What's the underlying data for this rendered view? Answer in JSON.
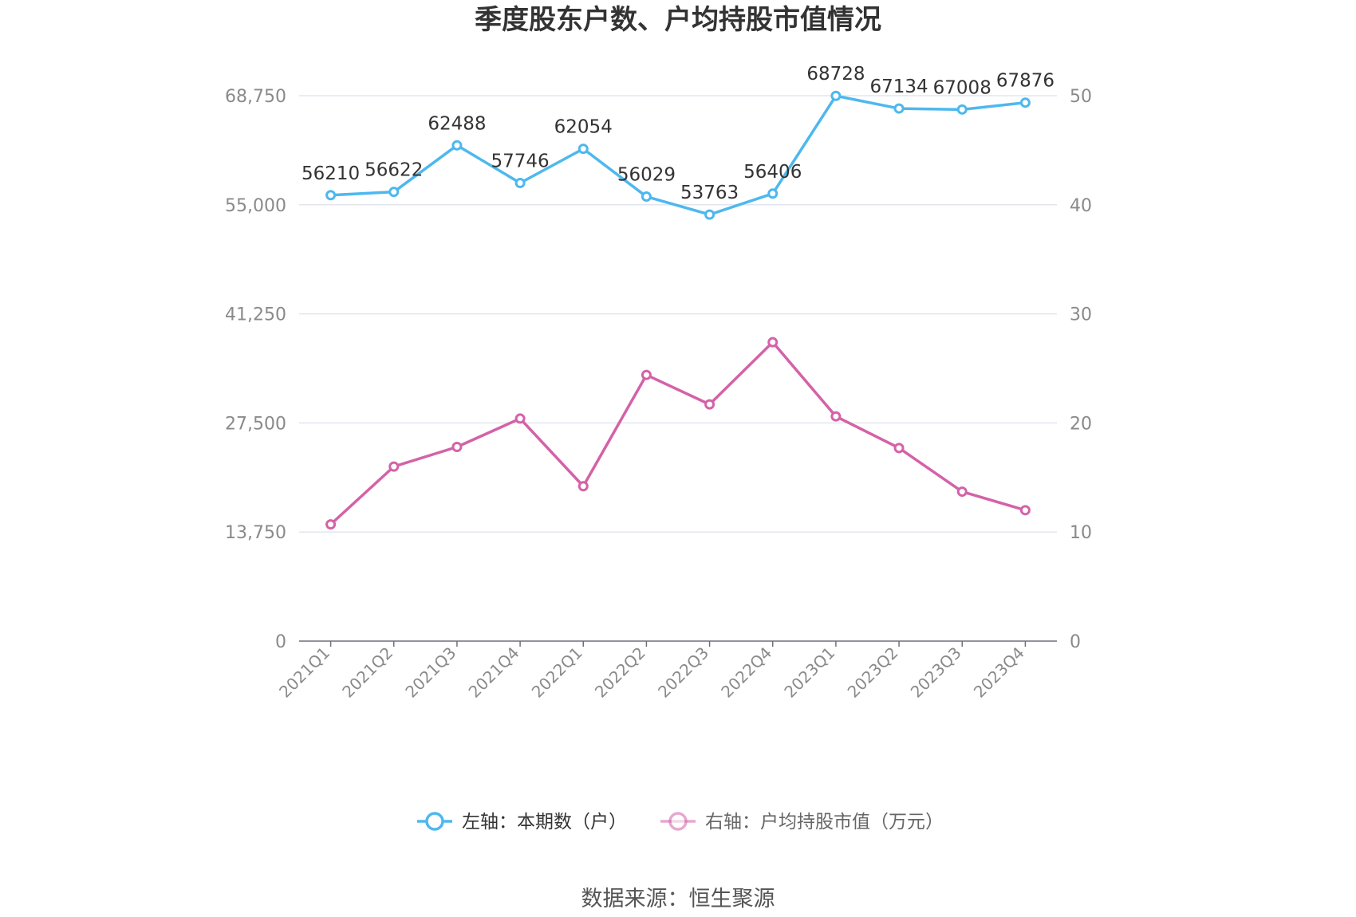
{
  "chart_data": {
    "type": "line",
    "title": "季度股东户数、户均持股市值情况",
    "categories": [
      "2021Q1",
      "2021Q2",
      "2021Q3",
      "2021Q4",
      "2022Q1",
      "2022Q2",
      "2022Q3",
      "2022Q4",
      "2023Q1",
      "2023Q2",
      "2023Q3",
      "2023Q4"
    ],
    "left_axis": {
      "ticks": [
        "0",
        "13,750",
        "27,500",
        "41,250",
        "55,000",
        "68,750"
      ],
      "ylim": [
        0,
        68750
      ]
    },
    "right_axis": {
      "ticks": [
        "0",
        "10",
        "20",
        "30",
        "40",
        "50"
      ],
      "ylim": [
        0,
        50
      ]
    },
    "series": [
      {
        "name": "左轴：本期数（户）",
        "axis": "left",
        "color": "#4db8ee",
        "values": [
          56210,
          56622,
          62488,
          57746,
          62054,
          56029,
          53763,
          56406,
          68728,
          67134,
          67008,
          67876
        ],
        "labels": [
          "56210",
          "56622",
          "62488",
          "57746",
          "62054",
          "56029",
          "53763",
          "56406",
          "68728",
          "67134",
          "67008",
          "67876"
        ]
      },
      {
        "name": "右轴：户均持股市值（万元）",
        "axis": "right",
        "color": "#d462a8",
        "values": [
          10.7,
          16.0,
          17.8,
          20.4,
          14.2,
          24.4,
          21.7,
          27.4,
          20.6,
          17.7,
          13.7,
          12.0
        ]
      }
    ],
    "grid": true,
    "legend": "bottom-center"
  },
  "source": "数据来源：恒生聚源"
}
